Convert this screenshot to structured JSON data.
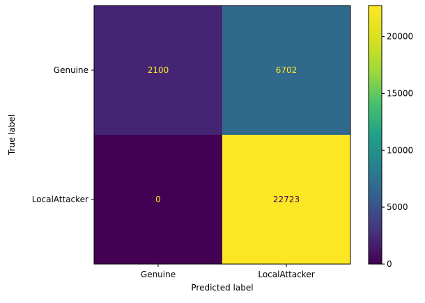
{
  "chart_data": {
    "type": "heatmap",
    "xlabel": "Predicted label",
    "ylabel": "True label",
    "x_categories": [
      "Genuine",
      "LocalAttacker"
    ],
    "y_categories": [
      "Genuine",
      "LocalAttacker"
    ],
    "values": [
      [
        2100,
        6702
      ],
      [
        0,
        22723
      ]
    ],
    "colorscale": "viridis",
    "colorbar": {
      "min": 0,
      "max": 22723,
      "ticks": [
        0,
        5000,
        10000,
        15000,
        20000
      ]
    },
    "annotation_colors": {
      "on_dark": "#fde725",
      "on_light": "#440154"
    },
    "grid": false
  }
}
